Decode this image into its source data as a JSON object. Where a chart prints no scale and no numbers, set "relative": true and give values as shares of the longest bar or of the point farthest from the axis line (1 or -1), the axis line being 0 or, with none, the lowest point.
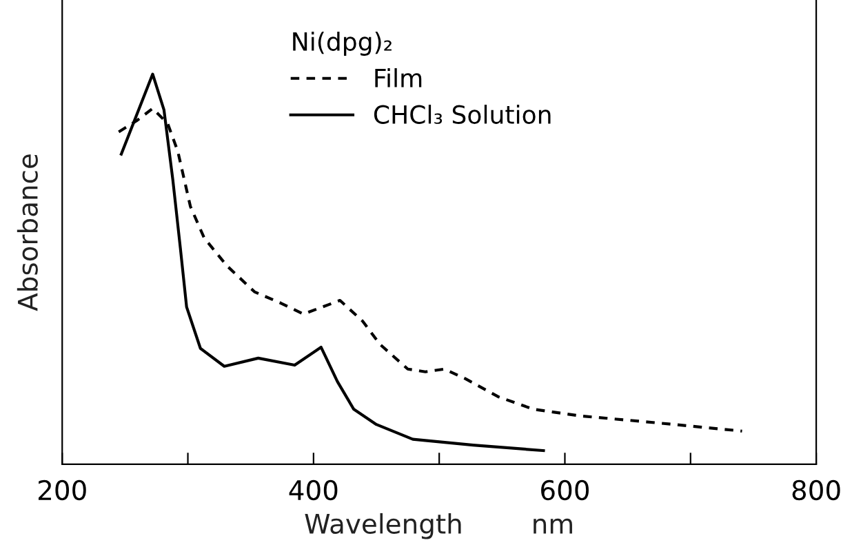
{
  "chart_data": {
    "type": "line",
    "relative": true,
    "xlabel": "Wavelength        nm",
    "ylabel": "Absorbance",
    "legend_title": "Ni(dpg)₂",
    "legend": "top right",
    "grid": false,
    "marker": "none",
    "xlim": [
      200,
      800
    ],
    "xticks": [
      200,
      {
        "value": 300,
        "label": null
      },
      400,
      {
        "value": 500,
        "label": null
      },
      600,
      {
        "value": 700,
        "label": null
      },
      800
    ],
    "tick_labels": "x",
    "series": [
      {
        "name": "Film",
        "color": "#000000",
        "line_style": "dashed",
        "x": [
          245,
          259,
          272,
          284,
          292,
          302,
          313,
          331,
          353,
          374,
          392,
          421,
          439,
          453,
          475,
          489,
          504,
          521,
          547,
          575,
          612,
          650,
          687,
          741
        ],
        "values": [
          0.852,
          0.88,
          0.912,
          0.873,
          0.802,
          0.661,
          0.58,
          0.509,
          0.442,
          0.413,
          0.385,
          0.42,
          0.367,
          0.307,
          0.244,
          0.237,
          0.244,
          0.219,
          0.173,
          0.141,
          0.124,
          0.113,
          0.102,
          0.085
        ]
      },
      {
        "name": "CHCl₃ Solution",
        "color": "#000000",
        "line_style": "solid",
        "x": [
          247,
          272,
          281,
          288,
          294,
          299,
          310,
          329,
          356,
          385,
          406,
          419,
          432,
          450,
          479,
          527,
          583
        ],
        "values": [
          0.795,
          1.0,
          0.908,
          0.73,
          0.555,
          0.403,
          0.297,
          0.251,
          0.272,
          0.254,
          0.3,
          0.212,
          0.141,
          0.102,
          0.064,
          0.049,
          0.035
        ]
      }
    ]
  }
}
